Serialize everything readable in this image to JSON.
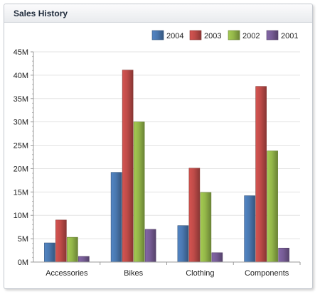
{
  "panel": {
    "title": "Sales History"
  },
  "chart_data": {
    "type": "bar",
    "title": "",
    "xlabel": "",
    "ylabel": "",
    "categories": [
      "Accessories",
      "Bikes",
      "Clothing",
      "Components"
    ],
    "series": [
      {
        "name": "2004",
        "values": [
          4.1,
          19.2,
          7.8,
          14.2
        ],
        "color": "#4a78b0"
      },
      {
        "name": "2003",
        "values": [
          9.0,
          41.1,
          20.1,
          37.6
        ],
        "color": "#be4b48"
      },
      {
        "name": "2002",
        "values": [
          5.3,
          30.0,
          14.9,
          23.8
        ],
        "color": "#93b649"
      },
      {
        "name": "2001",
        "values": [
          1.2,
          7.0,
          2.0,
          3.0
        ],
        "color": "#765c95"
      }
    ],
    "ylim": [
      0,
      45
    ],
    "yticks": [
      0,
      5,
      10,
      15,
      20,
      25,
      30,
      35,
      40,
      45
    ],
    "ytick_labels": [
      "0M",
      "5M",
      "10M",
      "15M",
      "20M",
      "25M",
      "30M",
      "35M",
      "40M",
      "45M"
    ],
    "grid": true,
    "legend_position": "top-right"
  }
}
